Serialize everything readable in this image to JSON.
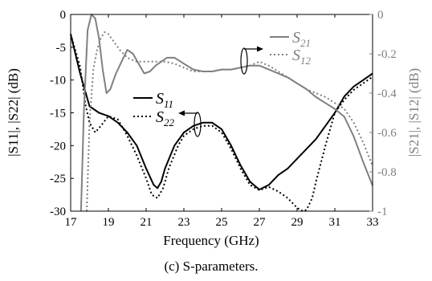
{
  "chart_data": {
    "type": "line",
    "xlabel": "Frequency (GHz)",
    "ylabel_left": "|S11|, |S22| (dB)",
    "ylabel_right": "|S21|, |S12| (dB)",
    "caption": "(c) S-parameters.",
    "xlim": [
      17,
      33
    ],
    "ylim_left": [
      -30,
      0
    ],
    "ylim_right": [
      -1,
      0
    ],
    "x_ticks": [
      "17",
      "19",
      "21",
      "23",
      "25",
      "27",
      "29",
      "31",
      "33"
    ],
    "y_ticks_left": [
      "0",
      "-5",
      "-10",
      "-15",
      "-20",
      "-25",
      "-30"
    ],
    "y_ticks_right": [
      "0",
      "-0.2",
      "-0.4",
      "-0.6",
      "-0.8",
      "-1"
    ],
    "legend": {
      "s11": {
        "base": "S",
        "sub": "11"
      },
      "s22": {
        "base": "S",
        "sub": "22"
      },
      "s21": {
        "base": "S",
        "sub": "21"
      },
      "s12": {
        "base": "S",
        "sub": "12"
      }
    },
    "series": [
      {
        "name": "S11",
        "axis": "left",
        "color": "#000000",
        "style": "solid",
        "x": [
          17,
          17.5,
          18,
          18.5,
          19,
          19.5,
          20,
          20.5,
          21,
          21.4,
          21.6,
          21.8,
          22,
          22.5,
          23,
          23.5,
          24,
          24.5,
          25,
          25.5,
          26,
          26.5,
          27,
          27.5,
          28,
          28.5,
          29,
          29.5,
          30,
          30.5,
          31,
          31.5,
          32,
          32.5,
          33
        ],
        "y": [
          -3,
          -9,
          -14,
          -15,
          -15.5,
          -16.5,
          -18,
          -20,
          -23.5,
          -26,
          -26.5,
          -25.5,
          -23.5,
          -20,
          -18,
          -17,
          -16.5,
          -16.5,
          -17.5,
          -20,
          -23,
          -25.5,
          -26.7,
          -26,
          -24.5,
          -23.5,
          -22,
          -20.5,
          -19,
          -17,
          -15,
          -12.5,
          -11,
          -10,
          -9
        ]
      },
      {
        "name": "S22",
        "axis": "left",
        "color": "#000000",
        "style": "dotted",
        "x": [
          17,
          17.5,
          17.8,
          18,
          18.3,
          18.6,
          19,
          19.5,
          20,
          20.5,
          21,
          21.3,
          21.6,
          21.9,
          22.2,
          22.7,
          23,
          23.5,
          24,
          24.5,
          25,
          25.5,
          26,
          26.5,
          27,
          27.5,
          28,
          28.5,
          29,
          29.3,
          29.5,
          29.8,
          30,
          30.5,
          31,
          31.5,
          32,
          32.5,
          33
        ],
        "y": [
          -3,
          -8,
          -14,
          -16.5,
          -18,
          -17,
          -15.5,
          -16,
          -18.5,
          -21.5,
          -25,
          -27.5,
          -28,
          -26.5,
          -23.5,
          -20,
          -18.5,
          -17.5,
          -17,
          -17,
          -18,
          -20.5,
          -23.5,
          -26,
          -26.8,
          -26.3,
          -27,
          -28,
          -29.5,
          -30,
          -29.8,
          -28,
          -25.5,
          -20,
          -15,
          -13,
          -11.5,
          -10.5,
          -9.5
        ]
      },
      {
        "name": "S21",
        "axis": "right",
        "color": "#808080",
        "style": "solid",
        "x": [
          17.55,
          17.7,
          17.9,
          18.1,
          18.3,
          18.5,
          18.7,
          18.9,
          19.1,
          19.4,
          19.7,
          20,
          20.3,
          20.6,
          20.9,
          21.2,
          21.5,
          21.8,
          22.1,
          22.5,
          23,
          23.5,
          24,
          24.5,
          25,
          25.5,
          26,
          26.5,
          27,
          27.5,
          28,
          28.5,
          29,
          29.5,
          30,
          30.5,
          31,
          31.5,
          32,
          32.5,
          33
        ],
        "y": [
          -1,
          -0.5,
          -0.08,
          0,
          -0.02,
          -0.12,
          -0.28,
          -0.4,
          -0.38,
          -0.3,
          -0.24,
          -0.18,
          -0.2,
          -0.25,
          -0.3,
          -0.29,
          -0.26,
          -0.24,
          -0.22,
          -0.22,
          -0.25,
          -0.28,
          -0.29,
          -0.29,
          -0.28,
          -0.28,
          -0.27,
          -0.26,
          -0.26,
          -0.28,
          -0.3,
          -0.32,
          -0.35,
          -0.38,
          -0.42,
          -0.45,
          -0.48,
          -0.52,
          -0.62,
          -0.75,
          -0.87
        ]
      },
      {
        "name": "S12",
        "axis": "right",
        "color": "#808080",
        "style": "dotted",
        "x": [
          17.85,
          18,
          18.2,
          18.4,
          18.6,
          18.8,
          19,
          19.3,
          19.6,
          20,
          20.5,
          21,
          21.5,
          22,
          22.5,
          23,
          23.5,
          24,
          24.5,
          25,
          25.5,
          26,
          26.5,
          27,
          27.5,
          28,
          28.5,
          29,
          29.5,
          30,
          30.5,
          31,
          31.5,
          32,
          32.5,
          33
        ],
        "y": [
          -1,
          -0.55,
          -0.28,
          -0.18,
          -0.12,
          -0.09,
          -0.1,
          -0.14,
          -0.18,
          -0.22,
          -0.24,
          -0.24,
          -0.24,
          -0.24,
          -0.25,
          -0.27,
          -0.29,
          -0.29,
          -0.29,
          -0.28,
          -0.28,
          -0.27,
          -0.26,
          -0.24,
          -0.26,
          -0.29,
          -0.32,
          -0.35,
          -0.38,
          -0.4,
          -0.42,
          -0.45,
          -0.48,
          -0.55,
          -0.65,
          -0.77
        ]
      }
    ]
  }
}
